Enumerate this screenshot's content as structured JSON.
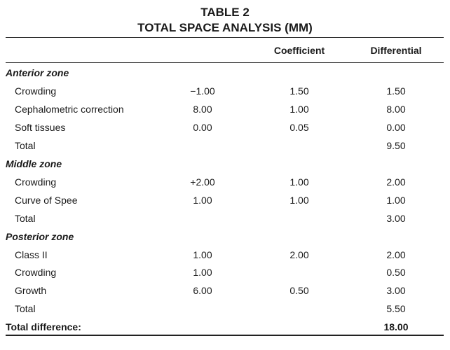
{
  "table": {
    "title_line1": "TABLE 2",
    "title_line2": "TOTAL SPACE ANALYSIS (MM)",
    "headers": {
      "value": "",
      "coefficient": "Coefficient",
      "differential": "Differential"
    },
    "rows": [
      {
        "type": "section",
        "label": "Anterior zone",
        "value": "",
        "coefficient": "",
        "differential": ""
      },
      {
        "type": "item",
        "label": "Crowding",
        "value": "−1.00",
        "coefficient": "1.50",
        "differential": "1.50"
      },
      {
        "type": "item",
        "label": "Cephalometric correction",
        "value": "8.00",
        "coefficient": "1.00",
        "differential": "8.00"
      },
      {
        "type": "item",
        "label": "Soft tissues",
        "value": "0.00",
        "coefficient": "0.05",
        "differential": "0.00"
      },
      {
        "type": "item",
        "label": "Total",
        "value": "",
        "coefficient": "",
        "differential": "9.50"
      },
      {
        "type": "section",
        "label": "Middle zone",
        "value": "",
        "coefficient": "",
        "differential": ""
      },
      {
        "type": "item",
        "label": "Crowding",
        "value": "+2.00",
        "coefficient": "1.00",
        "differential": "2.00"
      },
      {
        "type": "item",
        "label": "Curve of Spee",
        "value": "1.00",
        "coefficient": "1.00",
        "differential": "1.00"
      },
      {
        "type": "item",
        "label": "Total",
        "value": "",
        "coefficient": "",
        "differential": "3.00"
      },
      {
        "type": "section",
        "label": "Posterior zone",
        "value": "",
        "coefficient": "",
        "differential": ""
      },
      {
        "type": "item",
        "label": "Class II",
        "value": "1.00",
        "coefficient": "2.00",
        "differential": "2.00"
      },
      {
        "type": "item",
        "label": "Crowding",
        "value": "1.00",
        "coefficient": "",
        "differential": "0.50"
      },
      {
        "type": "item",
        "label": "Growth",
        "value": "6.00",
        "coefficient": "0.50",
        "differential": "3.00"
      },
      {
        "type": "item",
        "label": "Total",
        "value": "",
        "coefficient": "",
        "differential": "5.50"
      },
      {
        "type": "grand",
        "label": "Total difference:",
        "value": "",
        "coefficient": "",
        "differential": "18.00"
      }
    ]
  }
}
